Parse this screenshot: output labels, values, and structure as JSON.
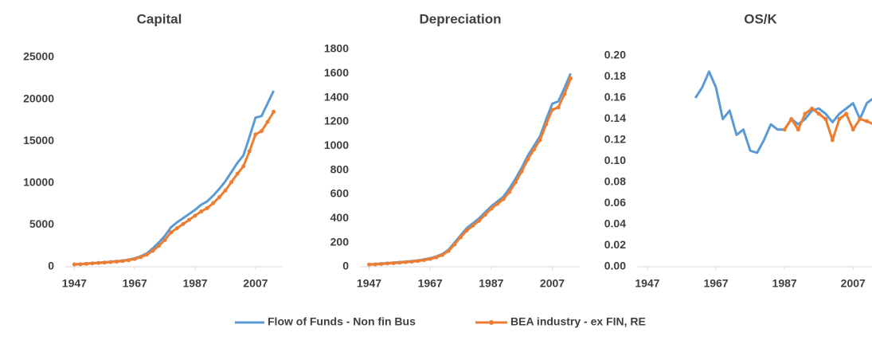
{
  "chart_data": [
    {
      "type": "line",
      "title": "Capital",
      "x": [
        1947,
        1949,
        1951,
        1953,
        1955,
        1957,
        1959,
        1961,
        1963,
        1965,
        1967,
        1969,
        1971,
        1973,
        1975,
        1977,
        1979,
        1981,
        1983,
        1985,
        1987,
        1989,
        1991,
        1993,
        1995,
        1997,
        1999,
        2001,
        2003,
        2005,
        2007,
        2009,
        2011,
        2013
      ],
      "xlim": [
        1944,
        2016
      ],
      "xticks": [
        1947,
        1967,
        1987,
        2007
      ],
      "ylim": [
        0,
        25000
      ],
      "yticks": [
        0,
        5000,
        10000,
        15000,
        20000,
        25000
      ],
      "series": [
        {
          "name": "Flow of Funds - Non fin Bus",
          "color": "#5b9bd5",
          "values": [
            300,
            320,
            380,
            430,
            480,
            540,
            600,
            650,
            720,
            850,
            1000,
            1250,
            1600,
            2200,
            2900,
            3700,
            4700,
            5300,
            5800,
            6300,
            6800,
            7400,
            7800,
            8500,
            9300,
            10200,
            11300,
            12400,
            13300,
            15500,
            17800,
            18000,
            19500,
            21000
          ]
        },
        {
          "name": "BEA industry - ex FIN, RE",
          "color": "#ed7d31",
          "values": [
            280,
            300,
            350,
            400,
            450,
            500,
            560,
            610,
            680,
            790,
            930,
            1150,
            1450,
            1900,
            2500,
            3200,
            4100,
            4600,
            5100,
            5600,
            6100,
            6600,
            7000,
            7600,
            8300,
            9100,
            10100,
            11100,
            12000,
            13800,
            15800,
            16200,
            17300,
            18500
          ]
        }
      ]
    },
    {
      "type": "line",
      "title": "Depreciation",
      "x": [
        1947,
        1949,
        1951,
        1953,
        1955,
        1957,
        1959,
        1961,
        1963,
        1965,
        1967,
        1969,
        1971,
        1973,
        1975,
        1977,
        1979,
        1981,
        1983,
        1985,
        1987,
        1989,
        1991,
        1993,
        1995,
        1997,
        1999,
        2001,
        2003,
        2005,
        2007,
        2009,
        2011,
        2013
      ],
      "xlim": [
        1944,
        2016
      ],
      "xticks": [
        1947,
        1967,
        1987,
        2007
      ],
      "ylim": [
        0,
        1800
      ],
      "yticks": [
        0,
        200,
        400,
        600,
        800,
        1000,
        1200,
        1400,
        1600,
        1800
      ],
      "series": [
        {
          "color": "#5b9bd5",
          "values": [
            20,
            22,
            26,
            30,
            34,
            38,
            42,
            46,
            52,
            60,
            70,
            85,
            105,
            140,
            200,
            260,
            320,
            360,
            400,
            450,
            500,
            540,
            580,
            650,
            730,
            820,
            920,
            1000,
            1080,
            1220,
            1350,
            1370,
            1480,
            1600
          ]
        },
        {
          "color": "#ed7d31",
          "values": [
            18,
            20,
            23,
            27,
            30,
            34,
            38,
            42,
            48,
            55,
            64,
            78,
            97,
            130,
            185,
            245,
            300,
            340,
            380,
            430,
            480,
            520,
            560,
            620,
            700,
            790,
            890,
            970,
            1050,
            1180,
            1300,
            1320,
            1430,
            1560
          ]
        }
      ]
    },
    {
      "type": "line",
      "title": "OS/K",
      "x": [
        1947,
        1949,
        1951,
        1953,
        1955,
        1957,
        1959,
        1961,
        1963,
        1965,
        1967,
        1969,
        1971,
        1973,
        1975,
        1977,
        1979,
        1981,
        1983,
        1985,
        1987,
        1989,
        1991,
        1993,
        1995,
        1997,
        1999,
        2001,
        2003,
        2005,
        2007,
        2009,
        2011,
        2013
      ],
      "xlim": [
        1944,
        2016
      ],
      "xticks": [
        1947,
        1967,
        1987,
        2007
      ],
      "ylim": [
        0,
        0.2
      ],
      "yticks": [
        {
          "value": 0,
          "label": "0.00"
        },
        {
          "value": 0.02,
          "label": "0.02"
        },
        {
          "value": 0.04,
          "label": "0.04"
        },
        {
          "value": 0.06,
          "label": "0.06"
        },
        {
          "value": 0.08,
          "label": "0.08"
        },
        {
          "value": 0.1,
          "label": "0.10"
        },
        {
          "value": 0.12,
          "label": "0.12"
        },
        {
          "value": 0.14,
          "label": "0.14"
        },
        {
          "value": 0.16,
          "label": "0.16"
        },
        {
          "value": 0.18,
          "label": "0.18"
        },
        {
          "value": 0.2,
          "label": "0.20"
        }
      ],
      "series": [
        {
          "color": "#5b9bd5",
          "values": [
            null,
            null,
            null,
            null,
            null,
            null,
            null,
            0.16,
            0.17,
            0.185,
            0.17,
            0.14,
            0.148,
            0.125,
            0.13,
            0.11,
            0.108,
            0.12,
            0.135,
            0.13,
            0.13,
            0.14,
            0.135,
            0.14,
            0.148,
            0.15,
            0.145,
            0.137,
            0.145,
            0.15,
            0.155,
            0.14,
            0.155,
            0.16
          ]
        },
        {
          "color": "#ed7d31",
          "values": [
            null,
            null,
            null,
            null,
            null,
            null,
            null,
            null,
            null,
            null,
            null,
            null,
            null,
            null,
            null,
            null,
            null,
            null,
            null,
            null,
            0.13,
            0.14,
            0.13,
            0.145,
            0.15,
            0.145,
            0.14,
            0.12,
            0.14,
            0.145,
            0.13,
            0.14,
            0.138,
            0.135
          ]
        }
      ]
    }
  ]
}
